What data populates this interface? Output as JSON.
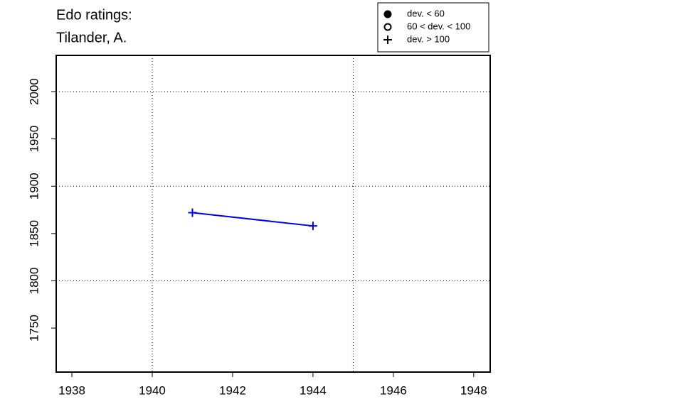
{
  "chart_data": {
    "type": "line",
    "title_lines": [
      "Edo ratings:",
      "Tilander, A."
    ],
    "x": [
      1941,
      1944
    ],
    "series": [
      {
        "color": "#0000ee",
        "marker": "plus",
        "values": [
          1872,
          1858
        ]
      }
    ],
    "xlim": [
      1937.61,
      1948.41
    ],
    "ylim": [
      1703.5,
      2038.3
    ],
    "xticks": [
      1938,
      1940,
      1942,
      1944,
      1946,
      1948
    ],
    "yticks": [
      1750,
      1800,
      1850,
      1900,
      1950,
      2000
    ],
    "xgrid": [
      1940,
      1945
    ],
    "ygrid": [
      1800,
      1900,
      2000
    ],
    "legend": [
      {
        "label": "dev. < 60",
        "marker": "filled-circle"
      },
      {
        "label": "60 < dev. < 100",
        "marker": "open-circle"
      },
      {
        "label": "dev. > 100",
        "marker": "plus"
      }
    ],
    "legend_position": "top-right"
  }
}
